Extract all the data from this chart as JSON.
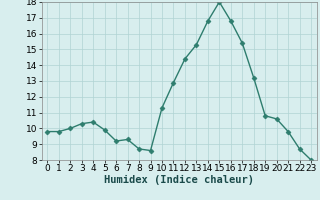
{
  "x": [
    0,
    1,
    2,
    3,
    4,
    5,
    6,
    7,
    8,
    9,
    10,
    11,
    12,
    13,
    14,
    15,
    16,
    17,
    18,
    19,
    20,
    21,
    22,
    23
  ],
  "y": [
    9.8,
    9.8,
    10.0,
    10.3,
    10.4,
    9.9,
    9.2,
    9.3,
    8.7,
    8.6,
    11.3,
    12.9,
    14.4,
    15.3,
    16.8,
    18.0,
    16.8,
    15.4,
    13.2,
    10.8,
    10.6,
    9.8,
    8.7,
    8.0
  ],
  "line_color": "#2e7d6e",
  "marker": "D",
  "marker_size": 2.5,
  "bg_color": "#d8eeee",
  "grid_color": "#b0d4d4",
  "xlabel": "Humidex (Indice chaleur)",
  "xlim": [
    -0.5,
    23.5
  ],
  "ylim": [
    8,
    18
  ],
  "yticks": [
    8,
    9,
    10,
    11,
    12,
    13,
    14,
    15,
    16,
    17,
    18
  ],
  "xticks": [
    0,
    1,
    2,
    3,
    4,
    5,
    6,
    7,
    8,
    9,
    10,
    11,
    12,
    13,
    14,
    15,
    16,
    17,
    18,
    19,
    20,
    21,
    22,
    23
  ],
  "xlabel_fontsize": 7.5,
  "tick_fontsize": 6.5,
  "linewidth": 1.0
}
